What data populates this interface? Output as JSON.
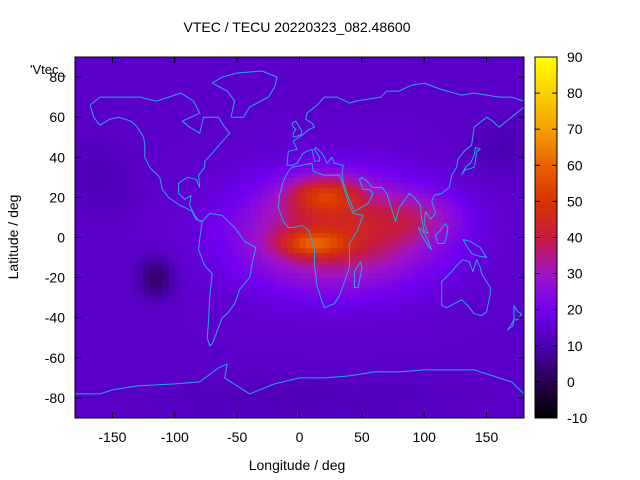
{
  "chart_data": {
    "type": "heatmap",
    "title": "VTEC / TECU 20220323_082.48600",
    "legend_label": "'Vtec_",
    "xlabel": "Longitude / deg",
    "ylabel": "Latitude / deg",
    "xlim": [
      -180,
      180
    ],
    "ylim": [
      -90,
      90
    ],
    "x_ticks": [
      -150,
      -100,
      -50,
      0,
      50,
      100,
      150
    ],
    "y_ticks": [
      -80,
      -60,
      -40,
      -20,
      0,
      20,
      40,
      60,
      80
    ],
    "colorbar": {
      "range": [
        -10,
        90
      ],
      "ticks": [
        -10,
        0,
        10,
        20,
        30,
        40,
        50,
        60,
        70,
        80,
        90
      ],
      "palette": [
        {
          "v": 0.0,
          "c": "#000000"
        },
        {
          "v": 0.1,
          "c": "#2a0050"
        },
        {
          "v": 0.2,
          "c": "#4c00b0"
        },
        {
          "v": 0.3,
          "c": "#7200f0"
        },
        {
          "v": 0.4,
          "c": "#a014c8"
        },
        {
          "v": 0.5,
          "c": "#c81a40"
        },
        {
          "v": 0.6,
          "c": "#d83400"
        },
        {
          "v": 0.7,
          "c": "#e86000"
        },
        {
          "v": 0.8,
          "c": "#f5a000"
        },
        {
          "v": 0.9,
          "c": "#fbd000"
        },
        {
          "v": 1.0,
          "c": "#ffff00"
        }
      ]
    },
    "model": {
      "background": 14,
      "blobs": [
        {
          "lon": 30,
          "lat": 2,
          "slon": 75,
          "slat": 26,
          "amp": 30
        },
        {
          "lon": 20,
          "lat": 22,
          "slon": 30,
          "slat": 9,
          "amp": 22
        },
        {
          "lon": 10,
          "lat": -3,
          "slon": 25,
          "slat": 6,
          "amp": 20
        },
        {
          "lon": 95,
          "lat": 10,
          "slon": 35,
          "slat": 12,
          "amp": 10
        },
        {
          "lon": -115,
          "lat": -20,
          "slon": 14,
          "slat": 10,
          "amp": -12
        },
        {
          "lon": -160,
          "lat": 30,
          "slon": 25,
          "slat": 20,
          "amp": -3
        },
        {
          "lon": 160,
          "lat": 45,
          "slon": 25,
          "slat": 15,
          "amp": -4
        },
        {
          "lon": 0,
          "lat": -80,
          "slon": 120,
          "slat": 10,
          "amp": -3
        }
      ]
    }
  },
  "colors": {
    "coastline": "#26a6e8",
    "axis": "#000000"
  }
}
